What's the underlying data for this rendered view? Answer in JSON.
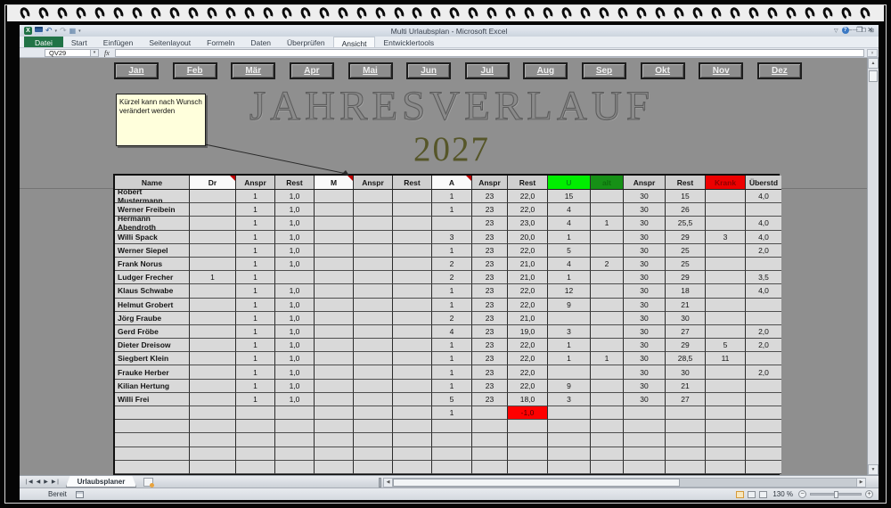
{
  "window": {
    "title": "Multi Urlaubsplan - Microsoft Excel"
  },
  "ribbon": {
    "tabs": [
      {
        "label": "Datei",
        "file": true
      },
      {
        "label": "Start"
      },
      {
        "label": "Einfügen"
      },
      {
        "label": "Seitenlayout"
      },
      {
        "label": "Formeln"
      },
      {
        "label": "Daten"
      },
      {
        "label": "Überprüfen"
      },
      {
        "label": "Ansicht",
        "active": true
      },
      {
        "label": "Entwicklertools"
      }
    ]
  },
  "formula_bar": {
    "name_box": "QV29",
    "fx_label": "fx"
  },
  "months": [
    "Jan",
    "Feb",
    "Mär",
    "Apr",
    "Mai",
    "Jun",
    "Jul",
    "Aug",
    "Sep",
    "Okt",
    "Nov",
    "Dez"
  ],
  "titles": {
    "main": "JAHRESVERLAUF",
    "year": "2027"
  },
  "note": {
    "text": "Kürzel kann nach Wunsch verändert werden"
  },
  "colors": {
    "u_green": "#00ee00",
    "alt_green": "#169016",
    "krank_red": "#ee0000",
    "negative_cell_red": "#ff0000",
    "year_olive": "#565629",
    "file_tab_green": "#217346"
  },
  "table": {
    "columns": [
      {
        "label": "Name",
        "variant": "gray"
      },
      {
        "label": "Dr",
        "variant": "white",
        "marker": true
      },
      {
        "label": "Anspr",
        "variant": "gray"
      },
      {
        "label": "Rest",
        "variant": "gray"
      },
      {
        "label": "M",
        "variant": "white",
        "marker": true
      },
      {
        "label": "Anspr",
        "variant": "gray"
      },
      {
        "label": "Rest",
        "variant": "gray"
      },
      {
        "label": "A",
        "variant": "white",
        "marker": true
      },
      {
        "label": "Anspr",
        "variant": "gray"
      },
      {
        "label": "Rest",
        "variant": "gray"
      },
      {
        "label": "U",
        "variant": "green"
      },
      {
        "label": "alt",
        "variant": "darkgreen"
      },
      {
        "label": "Anspr",
        "variant": "gray"
      },
      {
        "label": "Rest",
        "variant": "gray"
      },
      {
        "label": "Krank",
        "variant": "red"
      },
      {
        "label": "Überstd",
        "variant": "gray"
      }
    ],
    "rows": [
      [
        "Robert Mustermann",
        "",
        "1",
        "1,0",
        "",
        "",
        "",
        "1",
        "23",
        "22,0",
        "15",
        "",
        "30",
        "15",
        "",
        "4,0"
      ],
      [
        "Werner Freibein",
        "",
        "1",
        "1,0",
        "",
        "",
        "",
        "1",
        "23",
        "22,0",
        "4",
        "",
        "30",
        "26",
        "",
        ""
      ],
      [
        "Hermann Abendroth",
        "",
        "1",
        "1,0",
        "",
        "",
        "",
        "",
        "23",
        "23,0",
        "4",
        "1",
        "30",
        "25,5",
        "",
        "4,0"
      ],
      [
        "Willi Spack",
        "",
        "1",
        "1,0",
        "",
        "",
        "",
        "3",
        "23",
        "20,0",
        "1",
        "",
        "30",
        "29",
        "3",
        "4,0"
      ],
      [
        "Werner Siepel",
        "",
        "1",
        "1,0",
        "",
        "",
        "",
        "1",
        "23",
        "22,0",
        "5",
        "",
        "30",
        "25",
        "",
        "2,0"
      ],
      [
        "Frank Norus",
        "",
        "1",
        "1,0",
        "",
        "",
        "",
        "2",
        "23",
        "21,0",
        "4",
        "2",
        "30",
        "25",
        "",
        ""
      ],
      [
        "Ludger Frecher",
        "1",
        "1",
        "",
        "",
        "",
        "",
        "2",
        "23",
        "21,0",
        "1",
        "",
        "30",
        "29",
        "",
        "3,5"
      ],
      [
        "Klaus Schwabe",
        "",
        "1",
        "1,0",
        "",
        "",
        "",
        "1",
        "23",
        "22,0",
        "12",
        "",
        "30",
        "18",
        "",
        "4,0"
      ],
      [
        "Helmut Grobert",
        "",
        "1",
        "1,0",
        "",
        "",
        "",
        "1",
        "23",
        "22,0",
        "9",
        "",
        "30",
        "21",
        "",
        ""
      ],
      [
        "Jörg Fraube",
        "",
        "1",
        "1,0",
        "",
        "",
        "",
        "2",
        "23",
        "21,0",
        "",
        "",
        "30",
        "30",
        "",
        ""
      ],
      [
        "Gerd Fröbe",
        "",
        "1",
        "1,0",
        "",
        "",
        "",
        "4",
        "23",
        "19,0",
        "3",
        "",
        "30",
        "27",
        "",
        "2,0"
      ],
      [
        "Dieter Dreisow",
        "",
        "1",
        "1,0",
        "",
        "",
        "",
        "1",
        "23",
        "22,0",
        "1",
        "",
        "30",
        "29",
        "5",
        "2,0"
      ],
      [
        "Siegbert Klein",
        "",
        "1",
        "1,0",
        "",
        "",
        "",
        "1",
        "23",
        "22,0",
        "1",
        "1",
        "30",
        "28,5",
        "11",
        ""
      ],
      [
        "Frauke Herber",
        "",
        "1",
        "1,0",
        "",
        "",
        "",
        "1",
        "23",
        "22,0",
        "",
        "",
        "30",
        "30",
        "",
        "2,0"
      ],
      [
        "Kilian Hertung",
        "",
        "1",
        "1,0",
        "",
        "",
        "",
        "1",
        "23",
        "22,0",
        "9",
        "",
        "30",
        "21",
        "",
        ""
      ],
      [
        "Willi Frei",
        "",
        "1",
        "1,0",
        "",
        "",
        "",
        "5",
        "23",
        "18,0",
        "3",
        "",
        "30",
        "27",
        "",
        ""
      ],
      [
        "",
        "",
        "",
        "",
        "",
        "",
        "",
        "1",
        "",
        "-1,0",
        "",
        "",
        "",
        "",
        "",
        ""
      ],
      [
        "",
        "",
        "",
        "",
        "",
        "",
        "",
        "",
        "",
        "",
        "",
        "",
        "",
        "",
        "",
        ""
      ],
      [
        "",
        "",
        "",
        "",
        "",
        "",
        "",
        "",
        "",
        "",
        "",
        "",
        "",
        "",
        "",
        ""
      ],
      [
        "",
        "",
        "",
        "",
        "",
        "",
        "",
        "",
        "",
        "",
        "",
        "",
        "",
        "",
        "",
        ""
      ],
      [
        "",
        "",
        "",
        "",
        "",
        "",
        "",
        "",
        "",
        "",
        "",
        "",
        "",
        "",
        "",
        ""
      ]
    ],
    "highlights": [
      {
        "row": 16,
        "col": 9,
        "variant": "red"
      }
    ]
  },
  "sheet_bar": {
    "tab": "Urlaubsplaner"
  },
  "status_bar": {
    "ready": "Bereit",
    "zoom": "130 %"
  }
}
